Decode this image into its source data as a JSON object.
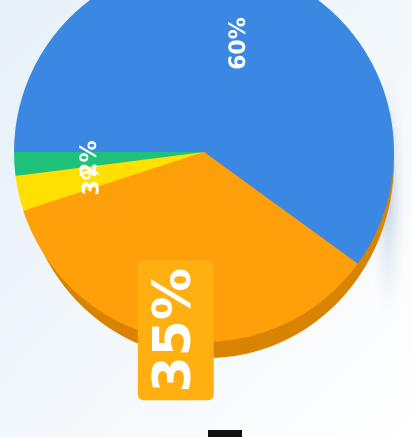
{
  "chart_data": {
    "type": "pie",
    "values": [
      60,
      35,
      3,
      2
    ],
    "value_labels": [
      "60%",
      "35%",
      "3%",
      "2%"
    ],
    "colors": [
      "#3b88e2",
      "#ff9f0a",
      "#ffe000",
      "#1fc27a"
    ]
  }
}
